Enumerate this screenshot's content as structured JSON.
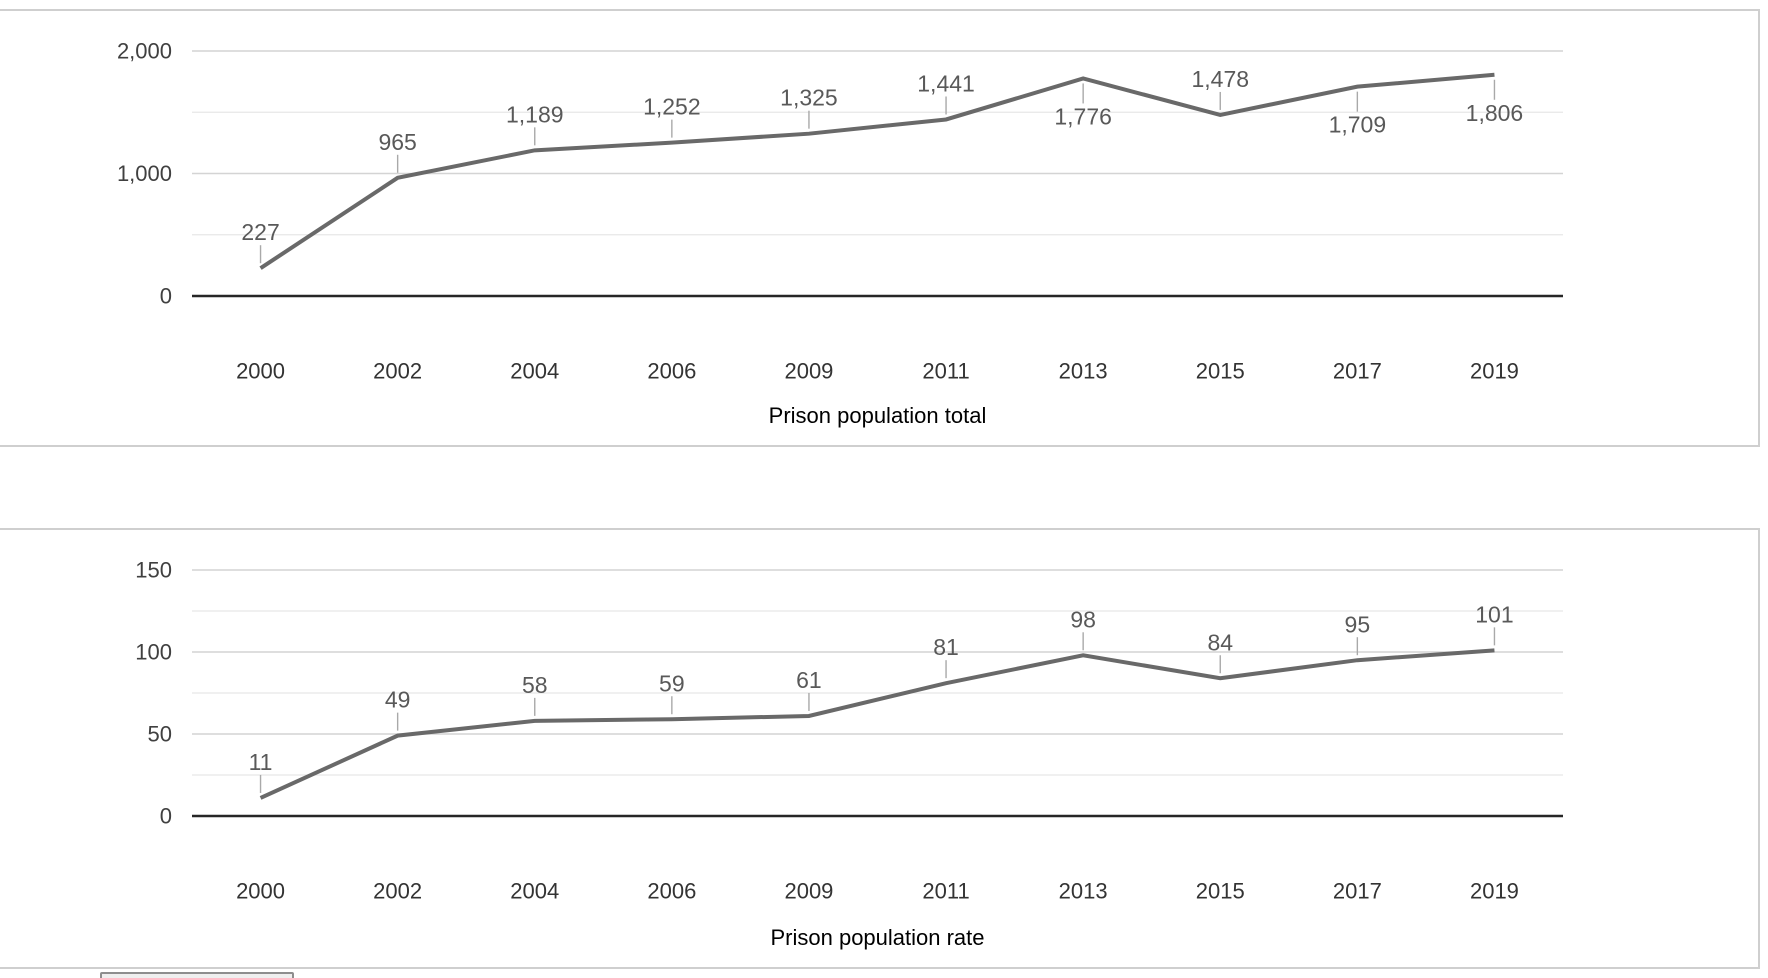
{
  "chart_data": [
    {
      "type": "line",
      "title": "Prison population total",
      "categories": [
        "2000",
        "2002",
        "2004",
        "2006",
        "2009",
        "2011",
        "2013",
        "2015",
        "2017",
        "2019"
      ],
      "values": [
        227,
        965,
        1189,
        1252,
        1325,
        1441,
        1776,
        1478,
        1709,
        1806
      ],
      "data_labels": [
        "227",
        "965",
        "1,189",
        "1,252",
        "1,325",
        "1,441",
        "1,776",
        "1,478",
        "1,709",
        "1,806"
      ],
      "label_positions": [
        "above",
        "above",
        "above",
        "above",
        "above",
        "above",
        "below",
        "above",
        "below",
        "below"
      ],
      "ylim": [
        0,
        2000
      ],
      "y_tick_step": 1000,
      "y_grid_step": 500,
      "y_tick_labels": [
        "0",
        "1,000",
        "2,000"
      ],
      "grid": true,
      "legend": "none",
      "line_color": "#696969"
    },
    {
      "type": "line",
      "title": "Prison population rate",
      "categories": [
        "2000",
        "2002",
        "2004",
        "2006",
        "2009",
        "2011",
        "2013",
        "2015",
        "2017",
        "2019"
      ],
      "values": [
        11,
        49,
        58,
        59,
        61,
        81,
        98,
        84,
        95,
        101
      ],
      "data_labels": [
        "11",
        "49",
        "58",
        "59",
        "61",
        "81",
        "98",
        "84",
        "95",
        "101"
      ],
      "label_positions": [
        "above",
        "above",
        "above",
        "above",
        "above",
        "above",
        "above",
        "above",
        "above",
        "above"
      ],
      "ylim": [
        0,
        150
      ],
      "y_tick_step": 50,
      "y_grid_step": 25,
      "y_tick_labels": [
        "0",
        "50",
        "100",
        "150"
      ],
      "grid": true,
      "legend": "none",
      "line_color": "#696969"
    }
  ]
}
